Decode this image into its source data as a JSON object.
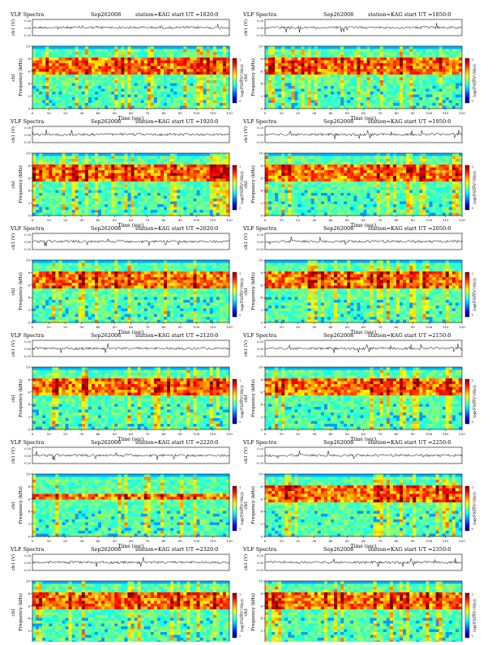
{
  "header": {
    "label": "VLF Spectra",
    "date": "Sep262008",
    "station": "station=KAG",
    "ut_prefix": "start  UT  ="
  },
  "axes": {
    "trace_label": "ch1 (V)",
    "trace_ticks": [
      "0.20",
      "0.00",
      "-0.20"
    ],
    "channel_label": "ch1",
    "freq_label": "Frequency  (kHz)",
    "freq_ticks": [
      "0",
      "2",
      "4",
      "6",
      "8",
      "10"
    ],
    "time_label": "Time  (sec)",
    "time_ticks": [
      "0",
      "10",
      "20",
      "30",
      "40",
      "50",
      "60",
      "70",
      "80",
      "90",
      "100",
      "110",
      "120"
    ],
    "colorbar_label": "log(PSD(V²/Hz))",
    "colorbar_ticks": [
      "-1",
      "-3",
      "-5"
    ]
  },
  "chart_data": {
    "type": "heatmap",
    "xlabel": "Time  (sec)",
    "ylabel": "Frequency  (kHz)",
    "xlim": [
      0,
      120
    ],
    "ylim": [
      0,
      10
    ],
    "panels": [
      {
        "start_ut": "1820:0",
        "band_khz": [
          5.5,
          8.0
        ]
      },
      {
        "start_ut": "1850:0",
        "band_khz": [
          5.5,
          8.0
        ]
      },
      {
        "start_ut": "1920:0",
        "band_khz": [
          5.5,
          8.0
        ]
      },
      {
        "start_ut": "1950:0",
        "band_khz": [
          5.5,
          8.0
        ]
      },
      {
        "start_ut": "2020:0",
        "band_khz": [
          5.5,
          8.0
        ]
      },
      {
        "start_ut": "2050:0",
        "band_khz": [
          5.5,
          8.0
        ]
      },
      {
        "start_ut": "2120:0",
        "band_khz": [
          5.5,
          8.0
        ]
      },
      {
        "start_ut": "2150:0",
        "band_khz": [
          5.5,
          8.0
        ]
      },
      {
        "start_ut": "2220:0",
        "band_khz": [
          6.0,
          7.0
        ]
      },
      {
        "start_ut": "2250:0",
        "band_khz": [
          5.5,
          8.0
        ]
      },
      {
        "start_ut": "2320:0",
        "band_khz": [
          5.5,
          8.0
        ]
      },
      {
        "start_ut": "2350:0",
        "band_khz": [
          5.5,
          8.0
        ]
      }
    ]
  }
}
